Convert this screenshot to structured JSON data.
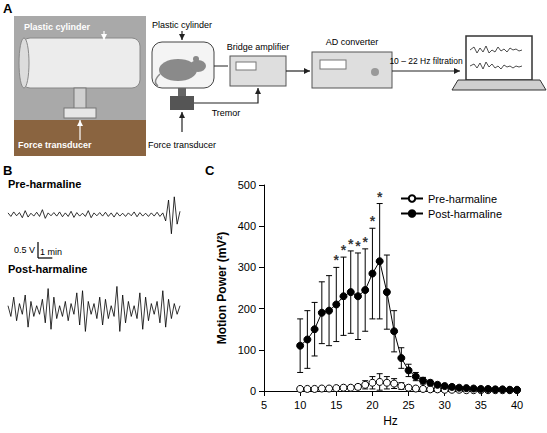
{
  "panel_labels": [
    "A",
    "B",
    "C"
  ],
  "diagram": {
    "photo": {
      "cylinder_label": "Plastic cylinder",
      "transducer_label": "Force transducer"
    },
    "schematic": {
      "cylinder_label": "Plastic cylinder",
      "transducer_label": "Force transducer",
      "signal_label": "Tremor",
      "amplifier_label": "Bridge amplifier",
      "converter_label": "AD converter",
      "filter_label": "10 – 22 Hz filtration"
    }
  },
  "chart_data": [
    {
      "type": "line",
      "title": "Pre-harmaline",
      "color": "#000000",
      "tick_labels": false,
      "xlim": [
        0,
        12
      ],
      "ylim": [
        -0.7,
        0.7
      ],
      "scale_bar": {
        "y": 0.5,
        "y_label": "0.5 V",
        "x": 1,
        "x_label": "1 min"
      },
      "x": [
        0,
        0.2,
        0.4,
        0.6,
        0.8,
        1,
        1.2,
        1.4,
        1.6,
        1.8,
        2,
        2.2,
        2.4,
        2.6,
        2.8,
        3,
        3.2,
        3.4,
        3.6,
        3.8,
        4,
        4.2,
        4.4,
        4.6,
        4.8,
        5,
        5.2,
        5.4,
        5.6,
        5.8,
        6,
        6.2,
        6.4,
        6.6,
        6.8,
        7,
        7.2,
        7.4,
        7.6,
        7.8,
        8,
        8.2,
        8.4,
        8.6,
        8.8,
        9,
        9.2,
        9.4,
        9.6,
        9.8,
        10,
        10.2,
        10.4,
        10.6,
        10.8,
        11,
        11.2,
        11.4,
        11.6,
        11.8,
        12
      ],
      "values": [
        0.05,
        -0.06,
        0.08,
        -0.04,
        0.06,
        -0.1,
        0.12,
        -0.08,
        0.04,
        -0.05,
        0.07,
        -0.06,
        0.15,
        -0.12,
        0.05,
        -0.04,
        0.06,
        -0.05,
        0.08,
        -0.07,
        0.05,
        -0.06,
        0.1,
        -0.09,
        0.06,
        -0.05,
        0.04,
        -0.06,
        0.12,
        -0.1,
        0.05,
        -0.04,
        0.06,
        -0.05,
        0.07,
        -0.06,
        0.05,
        -0.08,
        0.06,
        -0.05,
        0.04,
        -0.06,
        0.05,
        -0.04,
        0.08,
        -0.07,
        0.06,
        -0.05,
        0.04,
        -0.06,
        0.05,
        -0.05,
        0.07,
        -0.06,
        0.05,
        -0.2,
        0.45,
        -0.6,
        0.55,
        -0.3,
        0.1
      ]
    },
    {
      "type": "line",
      "title": "Post-harmaline",
      "color": "#000000",
      "tick_labels": false,
      "xlim": [
        0,
        12
      ],
      "ylim": [
        -0.7,
        0.7
      ],
      "x": [
        0,
        0.2,
        0.4,
        0.6,
        0.8,
        1,
        1.2,
        1.4,
        1.6,
        1.8,
        2,
        2.2,
        2.4,
        2.6,
        2.8,
        3,
        3.2,
        3.4,
        3.6,
        3.8,
        4,
        4.2,
        4.4,
        4.6,
        4.8,
        5,
        5.2,
        5.4,
        5.6,
        5.8,
        6,
        6.2,
        6.4,
        6.6,
        6.8,
        7,
        7.2,
        7.4,
        7.6,
        7.8,
        8,
        8.2,
        8.4,
        8.6,
        8.8,
        9,
        9.2,
        9.4,
        9.6,
        9.8,
        10,
        10.2,
        10.4,
        10.6,
        10.8,
        11,
        11.2,
        11.4,
        11.6,
        11.8,
        12
      ],
      "values": [
        0.1,
        -0.15,
        0.3,
        -0.25,
        0.15,
        -0.1,
        0.35,
        -0.4,
        0.2,
        -0.15,
        0.1,
        -0.1,
        0.25,
        -0.3,
        0.5,
        -0.45,
        0.3,
        -0.2,
        0.1,
        -0.15,
        0.2,
        -0.25,
        0.15,
        -0.1,
        0.4,
        -0.35,
        0.45,
        -0.5,
        0.2,
        -0.1,
        0.15,
        -0.2,
        0.3,
        -0.35,
        0.25,
        -0.2,
        0.1,
        -0.15,
        0.55,
        -0.5,
        0.35,
        -0.3,
        0.2,
        -0.15,
        0.1,
        -0.2,
        0.4,
        -0.45,
        0.3,
        -0.25,
        0.15,
        -0.1,
        0.2,
        -0.3,
        0.45,
        -0.4,
        0.25,
        -0.2,
        0.15,
        -0.1,
        0.1
      ]
    },
    {
      "type": "line",
      "xlabel": "Hz",
      "ylabel": "Motion Power (mV²)",
      "xlim": [
        5,
        40
      ],
      "xticks": [
        5,
        10,
        15,
        20,
        25,
        30,
        35,
        40
      ],
      "ylim": [
        0,
        500
      ],
      "yticks": [
        0,
        100,
        200,
        300,
        400,
        500
      ],
      "grid": false,
      "legend": "upper right",
      "x": [
        10,
        11,
        12,
        13,
        14,
        15,
        16,
        17,
        18,
        19,
        20,
        21,
        22,
        23,
        24,
        25,
        26,
        27,
        28,
        29,
        30,
        31,
        32,
        33,
        34,
        35,
        36,
        37,
        38,
        39,
        40
      ],
      "series": [
        {
          "name": "Pre-harmaline",
          "color": "#000000",
          "marker": "open_circle",
          "values": [
            5,
            5,
            5,
            6,
            6,
            7,
            8,
            8,
            10,
            15,
            20,
            22,
            20,
            18,
            12,
            8,
            6,
            5,
            4,
            4,
            3,
            3,
            3,
            2,
            2,
            2,
            2,
            2,
            2,
            2,
            2
          ],
          "errors": [
            3,
            3,
            3,
            3,
            3,
            4,
            4,
            4,
            6,
            10,
            15,
            20,
            15,
            12,
            8,
            5,
            4,
            3,
            3,
            2,
            2,
            2,
            2,
            1,
            1,
            1,
            1,
            1,
            1,
            1,
            1
          ]
        },
        {
          "name": "Post-harmaline",
          "color": "#000000",
          "marker": "filled_circle",
          "values": [
            110,
            125,
            150,
            190,
            195,
            210,
            230,
            240,
            230,
            245,
            285,
            315,
            240,
            145,
            80,
            50,
            35,
            25,
            20,
            15,
            12,
            10,
            8,
            7,
            6,
            5,
            5,
            4,
            4,
            3,
            3
          ],
          "errors": [
            65,
            70,
            65,
            75,
            85,
            90,
            95,
            100,
            105,
            100,
            110,
            140,
            90,
            50,
            25,
            15,
            10,
            8,
            6,
            5,
            4,
            3,
            3,
            2,
            2,
            2,
            2,
            2,
            1,
            1,
            1
          ]
        }
      ],
      "annotations": [
        {
          "x": 15,
          "text": "*",
          "series": "Post-harmaline"
        },
        {
          "x": 16,
          "text": "*",
          "series": "Post-harmaline"
        },
        {
          "x": 17,
          "text": "*",
          "series": "Post-harmaline"
        },
        {
          "x": 18,
          "text": "*",
          "series": "Post-harmaline"
        },
        {
          "x": 19,
          "text": "*",
          "series": "Post-harmaline"
        },
        {
          "x": 20,
          "text": "*",
          "series": "Post-harmaline"
        },
        {
          "x": 21,
          "text": "*",
          "series": "Post-harmaline"
        }
      ]
    }
  ]
}
